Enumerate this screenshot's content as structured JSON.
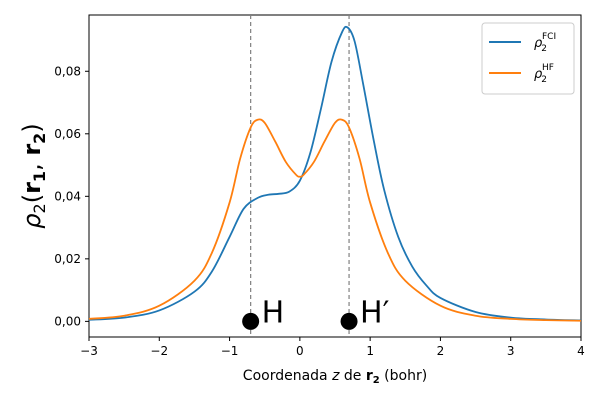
{
  "chart_data": {
    "type": "line",
    "title": "",
    "xlabel": {
      "prefix": "Coordenada ",
      "var": "z",
      "mid": " de ",
      "vec": "r",
      "sub": "2",
      "suffix": " (bohr)"
    },
    "ylabel": {
      "rho": "ρ",
      "rho_sub": "2",
      "open": "(",
      "r1": "r",
      "r1_sub": "1",
      "sep": ", ",
      "r2": "r",
      "r2_sub": "2",
      "close": ")"
    },
    "xlim": [
      -3,
      4
    ],
    "ylim": [
      -0.005,
      0.098
    ],
    "xticks": [
      -3,
      -2,
      -1,
      0,
      1,
      2,
      3,
      4
    ],
    "xtick_labels": [
      "−3",
      "−2",
      "−1",
      "0",
      "1",
      "2",
      "3",
      "4"
    ],
    "yticks": [
      0.0,
      0.02,
      0.04,
      0.06,
      0.08
    ],
    "ytick_labels": [
      "0,00",
      "0,02",
      "0,04",
      "0,06",
      "0,08"
    ],
    "grid": false,
    "legend_position": "top-right",
    "series": [
      {
        "name": "FCI",
        "color": "#1f77b4",
        "points": [
          [
            -3,
            0.0005
          ],
          [
            -2.5,
            0.0012
          ],
          [
            -2,
            0.0035
          ],
          [
            -1.5,
            0.0095
          ],
          [
            -1.25,
            0.016
          ],
          [
            -1,
            0.027
          ],
          [
            -0.8,
            0.036
          ],
          [
            -0.6,
            0.0395
          ],
          [
            -0.45,
            0.0405
          ],
          [
            -0.3,
            0.0408
          ],
          [
            -0.15,
            0.0415
          ],
          [
            0,
            0.045
          ],
          [
            0.15,
            0.054
          ],
          [
            0.3,
            0.068
          ],
          [
            0.45,
            0.083
          ],
          [
            0.6,
            0.0925
          ],
          [
            0.68,
            0.094
          ],
          [
            0.78,
            0.0895
          ],
          [
            0.9,
            0.076
          ],
          [
            1.05,
            0.058
          ],
          [
            1.2,
            0.042
          ],
          [
            1.4,
            0.027
          ],
          [
            1.6,
            0.0175
          ],
          [
            1.8,
            0.0115
          ],
          [
            2,
            0.0075
          ],
          [
            2.5,
            0.003
          ],
          [
            3,
            0.0012
          ],
          [
            3.5,
            0.0006
          ],
          [
            4,
            0.0003
          ]
        ]
      },
      {
        "name": "HF",
        "color": "#ff7f0e",
        "points": [
          [
            -3,
            0.0008
          ],
          [
            -2.5,
            0.0018
          ],
          [
            -2,
            0.005
          ],
          [
            -1.5,
            0.013
          ],
          [
            -1.25,
            0.022
          ],
          [
            -1,
            0.038
          ],
          [
            -0.85,
            0.052
          ],
          [
            -0.7,
            0.062
          ],
          [
            -0.6,
            0.0645
          ],
          [
            -0.5,
            0.0635
          ],
          [
            -0.35,
            0.0575
          ],
          [
            -0.2,
            0.051
          ],
          [
            -0.05,
            0.0468
          ],
          [
            0,
            0.0463
          ],
          [
            0.05,
            0.0468
          ],
          [
            0.2,
            0.051
          ],
          [
            0.35,
            0.0575
          ],
          [
            0.5,
            0.0635
          ],
          [
            0.6,
            0.0645
          ],
          [
            0.7,
            0.062
          ],
          [
            0.85,
            0.052
          ],
          [
            1,
            0.038
          ],
          [
            1.25,
            0.022
          ],
          [
            1.5,
            0.013
          ],
          [
            2,
            0.005
          ],
          [
            2.5,
            0.0018
          ],
          [
            3,
            0.0008
          ],
          [
            3.5,
            0.0004
          ],
          [
            4,
            0.0002
          ]
        ]
      }
    ],
    "vlines": [
      -0.7,
      0.7
    ],
    "atoms": [
      {
        "x": -0.7,
        "y": 0.0,
        "label": "H"
      },
      {
        "x": 0.7,
        "y": 0.0,
        "label": "H′"
      }
    ]
  },
  "legend": {
    "rho": "ρ",
    "sub": "2",
    "fci_sup": "FCI",
    "hf_sup": "HF"
  }
}
